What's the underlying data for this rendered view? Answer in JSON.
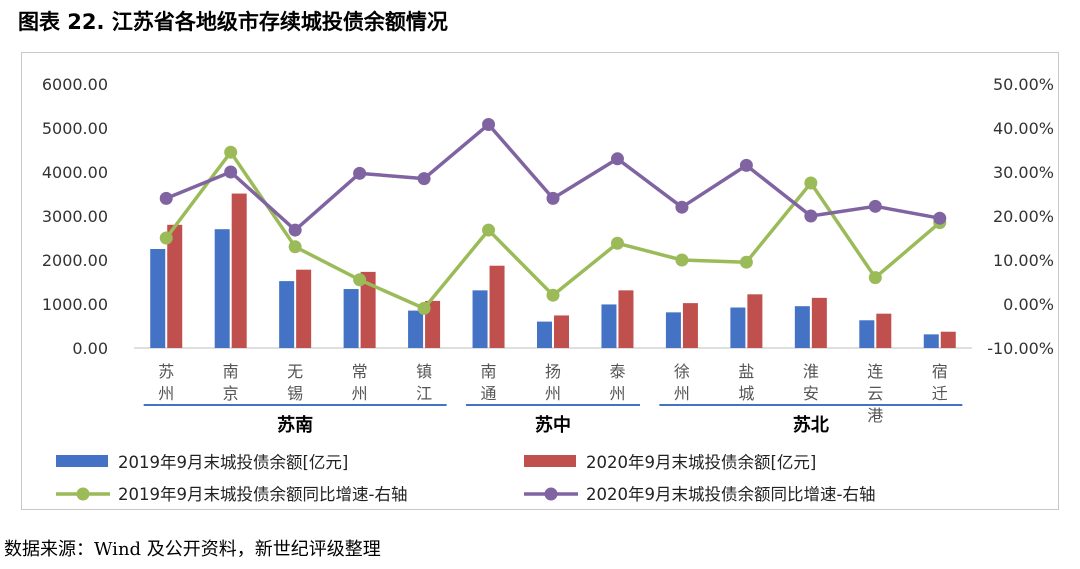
{
  "title": "图表 22. 江苏省各地级市存续城投债余额情况",
  "source": "数据来源：Wind 及公开资料，新世纪评级整理",
  "chart_data": {
    "type": "bar",
    "categories": [
      "苏州",
      "南京",
      "无锡",
      "常州",
      "镇江",
      "南通",
      "扬州",
      "泰州",
      "徐州",
      "盐城",
      "淮安",
      "连云港",
      "宿迁"
    ],
    "groups": [
      {
        "name": "苏南",
        "members": [
          "苏州",
          "南京",
          "无锡",
          "常州",
          "镇江"
        ]
      },
      {
        "name": "苏中",
        "members": [
          "南通",
          "扬州",
          "泰州"
        ]
      },
      {
        "name": "苏北",
        "members": [
          "徐州",
          "盐城",
          "淮安",
          "连云港",
          "宿迁"
        ]
      }
    ],
    "series": [
      {
        "name": "2019年9月末城投债余额[亿元]",
        "type": "bar",
        "axis": "left",
        "color": "#4472C4",
        "values": [
          2250,
          2700,
          1520,
          1340,
          850,
          1310,
          600,
          990,
          810,
          920,
          950,
          630,
          310
        ]
      },
      {
        "name": "2020年9月末城投债余额[亿元]",
        "type": "bar",
        "axis": "left",
        "color": "#C0504D",
        "values": [
          2800,
          3510,
          1780,
          1730,
          1070,
          1870,
          740,
          1310,
          1020,
          1220,
          1140,
          780,
          370
        ]
      },
      {
        "name": "2019年9月末城投债余额同比增速-右轴",
        "type": "line",
        "axis": "right",
        "color": "#9BBB59",
        "values": [
          15.0,
          34.5,
          13.0,
          5.5,
          -1.0,
          16.8,
          2.0,
          13.8,
          10.0,
          9.5,
          27.5,
          6.0,
          18.5
        ]
      },
      {
        "name": "2020年9月末城投债余额同比增速-右轴",
        "type": "line",
        "axis": "right",
        "color": "#8064A2",
        "values": [
          24.0,
          30.0,
          16.8,
          29.7,
          28.5,
          40.8,
          24.0,
          33.0,
          22.0,
          31.5,
          20.0,
          22.2,
          19.5
        ]
      }
    ],
    "ylim_left": [
      0,
      6000
    ],
    "ylim_right": [
      -10,
      50
    ],
    "yticks_left": [
      "0.00",
      "1000.00",
      "2000.00",
      "3000.00",
      "4000.00",
      "5000.00",
      "6000.00"
    ],
    "yticks_right": [
      "-10.00%",
      "0.00%",
      "10.00%",
      "20.00%",
      "30.00%",
      "40.00%",
      "50.00%"
    ],
    "legend": "bottom",
    "grid": false
  }
}
